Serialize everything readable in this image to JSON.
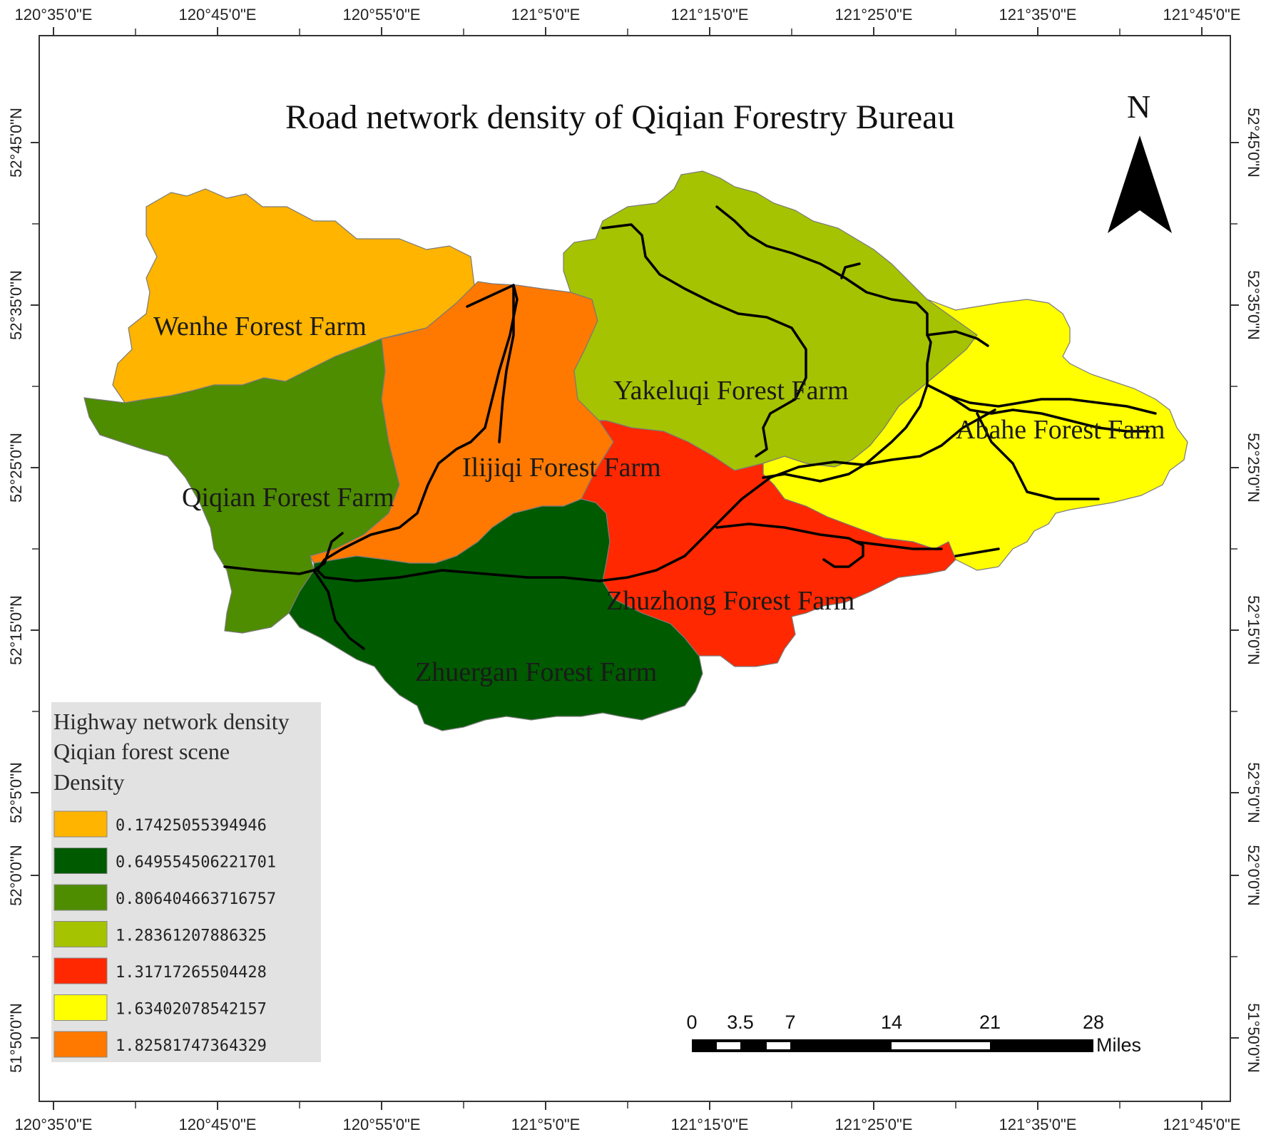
{
  "map": {
    "title": "Road network density of Qiqian  Forestry Bureau",
    "north_label": "N",
    "lon_labels": [
      "120°35'0\"E",
      "120°45'0\"E",
      "120°55'0\"E",
      "121°5'0\"E",
      "121°15'0\"E",
      "121°25'0\"E",
      "121°35'0\"E",
      "121°45'0\"E"
    ],
    "lat_labels": [
      "52°45'0\"N",
      "52°35'0\"N",
      "52°25'0\"N",
      "52°15'0\"N",
      "52°5'0\"N",
      "52°0'0\"N",
      "51°50'0\"N"
    ],
    "farms": [
      {
        "name": "Wenhe Forest Farm",
        "density": "0.17425055394946",
        "color": "#FFB400"
      },
      {
        "name": "Zhuergan Forest Farm",
        "density": "0.649554506221701",
        "color": "#005A00"
      },
      {
        "name": "Qiqian Forest Farm",
        "density": "0.806404663716757",
        "color": "#4E8C00"
      },
      {
        "name": "Yakeluqi Forest Farm",
        "density": "1.28361207886325",
        "color": "#A5C300"
      },
      {
        "name": "Zhuzhong Forest Farm",
        "density": "1.31717265504428",
        "color": "#FF2800"
      },
      {
        "name": "Abahe Forest Farm",
        "density": "1.63402078542157",
        "color": "#FFFF00"
      },
      {
        "name": "Ilijiqi Forest Farm",
        "density": "1.82581747364329",
        "color": "#FF7800"
      }
    ]
  },
  "legend": {
    "title_lines": [
      "Highway network density",
      "Qiqian forest scene",
      "Density"
    ],
    "entries": [
      {
        "value": "0.17425055394946",
        "color": "#FFB400"
      },
      {
        "value": "0.649554506221701",
        "color": "#005A00"
      },
      {
        "value": "0.806404663716757",
        "color": "#4E8C00"
      },
      {
        "value": "1.28361207886325",
        "color": "#A5C300"
      },
      {
        "value": "1.31717265504428",
        "color": "#FF2800"
      },
      {
        "value": "1.63402078542157",
        "color": "#FFFF00"
      },
      {
        "value": "1.82581747364329",
        "color": "#FF7800"
      }
    ]
  },
  "scale_bar": {
    "ticks": [
      "0",
      "3.5",
      "7",
      "14",
      "21",
      "28"
    ],
    "unit": "Miles"
  }
}
